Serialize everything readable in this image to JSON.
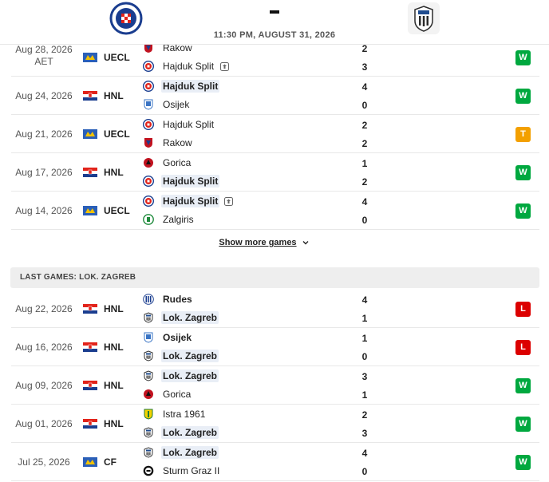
{
  "header": {
    "datetime": "11:30 PM, AUGUST 31, 2026",
    "home_logo": "hajduk-split-crest",
    "away_logo": "lok-zagreb-crest"
  },
  "colors": {
    "win": "#00a83f",
    "loss": "#dc0000",
    "draw": "#f3a000"
  },
  "hajduk_games": [
    {
      "date": "Aug 28, 2026",
      "date_note": "AET",
      "flag": "uefa-flag",
      "comp": "UECL",
      "team1": "Rakow",
      "team1_hl": false,
      "team1_ext": false,
      "crest1": "rakow-crest",
      "team2": "Hajduk Split",
      "team2_hl": false,
      "team2_ext": true,
      "crest2": "hajduk-crest",
      "score1": "2",
      "score2": "3",
      "result": "W"
    },
    {
      "date": "Aug 24, 2026",
      "date_note": "",
      "flag": "croatia-flag",
      "comp": "HNL",
      "team1": "Hajduk Split",
      "team1_hl": true,
      "team1_ext": false,
      "crest1": "hajduk-crest",
      "team2": "Osijek",
      "team2_hl": false,
      "team2_ext": false,
      "crest2": "osijek-crest",
      "score1": "4",
      "score2": "0",
      "result": "W"
    },
    {
      "date": "Aug 21, 2026",
      "date_note": "",
      "flag": "uefa-flag",
      "comp": "UECL",
      "team1": "Hajduk Split",
      "team1_hl": false,
      "team1_ext": false,
      "crest1": "hajduk-crest",
      "team2": "Rakow",
      "team2_hl": false,
      "team2_ext": false,
      "crest2": "rakow-crest",
      "score1": "2",
      "score2": "2",
      "result": "T"
    },
    {
      "date": "Aug 17, 2026",
      "date_note": "",
      "flag": "croatia-flag",
      "comp": "HNL",
      "team1": "Gorica",
      "team1_hl": false,
      "team1_ext": false,
      "crest1": "gorica-crest",
      "team2": "Hajduk Split",
      "team2_hl": true,
      "team2_ext": false,
      "crest2": "hajduk-crest",
      "score1": "1",
      "score2": "2",
      "result": "W"
    },
    {
      "date": "Aug 14, 2026",
      "date_note": "",
      "flag": "uefa-flag",
      "comp": "UECL",
      "team1": "Hajduk Split",
      "team1_hl": true,
      "team1_ext": true,
      "crest1": "hajduk-crest",
      "team2": "Zalgiris",
      "team2_hl": false,
      "team2_ext": false,
      "crest2": "zalgiris-crest",
      "score1": "4",
      "score2": "0",
      "result": "W"
    }
  ],
  "show_more": "Show more games",
  "section_title": "LAST GAMES: LOK. ZAGREB",
  "lok_games": [
    {
      "date": "Aug 22, 2026",
      "date_note": "",
      "flag": "croatia-flag",
      "comp": "HNL",
      "team1": "Rudes",
      "team1_hl": false,
      "team1_bold": true,
      "team1_ext": false,
      "crest1": "rudes-crest",
      "team2": "Lok. Zagreb",
      "team2_hl": true,
      "team2_ext": false,
      "crest2": "lok-crest",
      "score1": "4",
      "score2": "1",
      "result": "L"
    },
    {
      "date": "Aug 16, 2026",
      "date_note": "",
      "flag": "croatia-flag",
      "comp": "HNL",
      "team1": "Osijek",
      "team1_hl": false,
      "team1_bold": true,
      "team1_ext": false,
      "crest1": "osijek-crest",
      "team2": "Lok. Zagreb",
      "team2_hl": true,
      "team2_ext": false,
      "crest2": "lok-crest",
      "score1": "1",
      "score2": "0",
      "result": "L"
    },
    {
      "date": "Aug 09, 2026",
      "date_note": "",
      "flag": "croatia-flag",
      "comp": "HNL",
      "team1": "Lok. Zagreb",
      "team1_hl": true,
      "team1_ext": false,
      "crest1": "lok-crest",
      "team2": "Gorica",
      "team2_hl": false,
      "team2_ext": false,
      "crest2": "gorica-crest",
      "score1": "3",
      "score2": "1",
      "result": "W"
    },
    {
      "date": "Aug 01, 2026",
      "date_note": "",
      "flag": "croatia-flag",
      "comp": "HNL",
      "team1": "Istra 1961",
      "team1_hl": false,
      "team1_ext": false,
      "crest1": "istra-crest",
      "team2": "Lok. Zagreb",
      "team2_hl": true,
      "team2_ext": false,
      "crest2": "lok-crest",
      "score1": "2",
      "score2": "3",
      "result": "W"
    },
    {
      "date": "Jul 25, 2026",
      "date_note": "",
      "flag": "uefa-flag",
      "comp": "CF",
      "team1": "Lok. Zagreb",
      "team1_hl": true,
      "team1_ext": false,
      "crest1": "lok-crest",
      "team2": "Sturm Graz II",
      "team2_hl": false,
      "team2_ext": false,
      "crest2": "sturm-crest",
      "score1": "4",
      "score2": "0",
      "result": "W"
    }
  ]
}
